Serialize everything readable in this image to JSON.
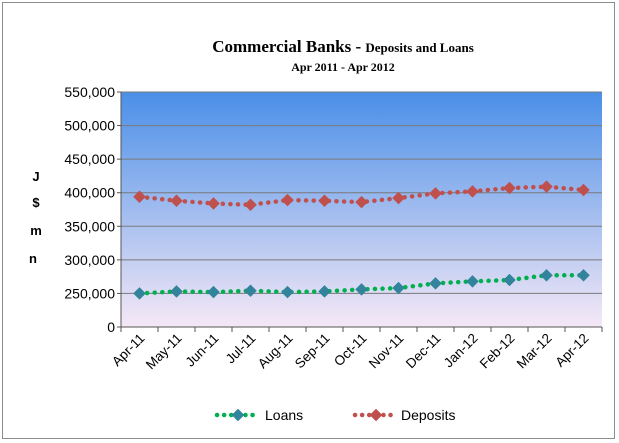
{
  "chart_data": {
    "type": "line",
    "title": "Commercial Banks - ",
    "title_suffix": "Deposits and Loans",
    "subtitle": "Apr 2011 -  Apr 2012",
    "ylabel_chars": [
      "J",
      "$",
      "m",
      "n"
    ],
    "categories": [
      "Apr-11",
      "May-11",
      "Jun-11",
      "Jul-11",
      "Aug-11",
      "Sep-11",
      "Oct-11",
      "Nov-11",
      "Dec-11",
      "Jan-12",
      "Feb-12",
      "Mar-12",
      "Apr-12"
    ],
    "y_ticks": [
      "550,000",
      "500,000",
      "450,000",
      "400,000",
      "350,000",
      "300,000",
      "250,000",
      "0"
    ],
    "series": [
      {
        "name": "Loans",
        "color": "#00b050",
        "marker_color": "#31849b",
        "values": [
          250000,
          253000,
          252000,
          254000,
          252000,
          253000,
          256000,
          258000,
          265000,
          268000,
          270000,
          277000,
          277000
        ]
      },
      {
        "name": "Deposits",
        "color": "#c0504d",
        "marker_color": "#c0504d",
        "values": [
          394000,
          388000,
          384000,
          382000,
          389000,
          388000,
          386000,
          392000,
          399000,
          402000,
          407000,
          409000,
          404000
        ]
      }
    ],
    "legend_position": "bottom",
    "gradient_top": "#4a8fe8",
    "gradient_bottom": "#f5e8f6"
  }
}
